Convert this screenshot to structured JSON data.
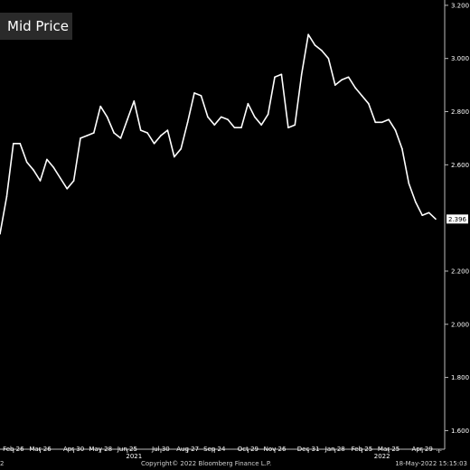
{
  "legend": {
    "label": "Mid Price"
  },
  "footer": {
    "copyright": "Copyright© 2022 Bloomberg Finance L.P.",
    "timestamp": "18-May-2022 15:15:03",
    "left_fragment": "2"
  },
  "colors": {
    "background": "#000000",
    "line": "#ffffff",
    "text": "#ffffff",
    "legend_bg": "#2a2a2a"
  },
  "chart_data": {
    "type": "line",
    "ylim": [
      1.53,
      3.22
    ],
    "y_ticks": [
      "1.600",
      "1.800",
      "2.000",
      "2.200",
      "2.600",
      "2.800",
      "3.000",
      "3.200"
    ],
    "x_ticks": [
      {
        "label": "Feb 26",
        "i": 2
      },
      {
        "label": "Mar 26",
        "i": 6
      },
      {
        "label": "Apr 30",
        "i": 11
      },
      {
        "label": "May 28",
        "i": 15
      },
      {
        "label": "Jun 25",
        "i": 19
      },
      {
        "label": "Jul 30",
        "i": 24
      },
      {
        "label": "Aug 27",
        "i": 28
      },
      {
        "label": "Sep 24",
        "i": 32
      },
      {
        "label": "Oct 29",
        "i": 37
      },
      {
        "label": "Nov 26",
        "i": 41
      },
      {
        "label": "Dec 31",
        "i": 46
      },
      {
        "label": "Jan 28",
        "i": 50
      },
      {
        "label": "Feb 25",
        "i": 54
      },
      {
        "label": "Mar 25",
        "i": 58
      },
      {
        "label": "Apr 29",
        "i": 63
      },
      {
        "label": "...",
        "i": 65.5
      }
    ],
    "year_labels": [
      {
        "label": "2021",
        "i": 20
      },
      {
        "label": "2022",
        "i": 57
      }
    ],
    "last_value_label": "2.396",
    "values": [
      2.34,
      2.48,
      2.68,
      2.68,
      2.61,
      2.58,
      2.54,
      2.62,
      2.59,
      2.55,
      2.51,
      2.54,
      2.7,
      2.71,
      2.72,
      2.82,
      2.78,
      2.72,
      2.7,
      2.77,
      2.84,
      2.73,
      2.72,
      2.68,
      2.71,
      2.73,
      2.63,
      2.66,
      2.76,
      2.87,
      2.86,
      2.78,
      2.75,
      2.78,
      2.77,
      2.74,
      2.74,
      2.83,
      2.78,
      2.75,
      2.79,
      2.93,
      2.94,
      2.74,
      2.75,
      2.94,
      3.09,
      3.05,
      3.03,
      3.0,
      2.9,
      2.92,
      2.93,
      2.89,
      2.86,
      2.83,
      2.76,
      2.76,
      2.77,
      2.73,
      2.66,
      2.53,
      2.46,
      2.41,
      2.42,
      2.396
    ]
  }
}
